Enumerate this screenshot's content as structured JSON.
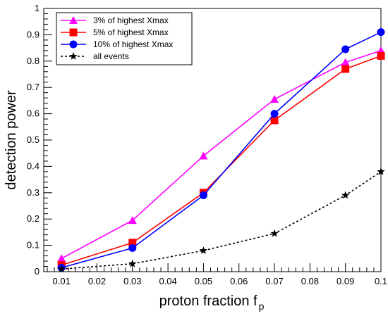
{
  "chart_data": {
    "type": "line",
    "xlabel": "proton fraction f",
    "xlabel_subscript": "p",
    "ylabel": "detection power",
    "xlim": [
      0.005,
      0.1
    ],
    "ylim": [
      0,
      1
    ],
    "x": [
      0.01,
      0.03,
      0.05,
      0.07,
      0.09,
      0.1
    ],
    "x_ticks": [
      {
        "value": 0.01,
        "label": "0.01"
      },
      {
        "value": 0.02,
        "label": "0.02"
      },
      {
        "value": 0.03,
        "label": "0.03"
      },
      {
        "value": 0.04,
        "label": "0.04"
      },
      {
        "value": 0.05,
        "label": "0.05"
      },
      {
        "value": 0.06,
        "label": "0.06"
      },
      {
        "value": 0.07,
        "label": "0.07"
      },
      {
        "value": 0.08,
        "label": "0.08"
      },
      {
        "value": 0.09,
        "label": "0.09"
      },
      {
        "value": 0.1,
        "label": "0.1"
      }
    ],
    "y_ticks": [
      {
        "value": 0,
        "label": "0"
      },
      {
        "value": 0.1,
        "label": "0.1"
      },
      {
        "value": 0.2,
        "label": "0.2"
      },
      {
        "value": 0.3,
        "label": "0.3"
      },
      {
        "value": 0.4,
        "label": "0.4"
      },
      {
        "value": 0.5,
        "label": "0.5"
      },
      {
        "value": 0.6,
        "label": "0.6"
      },
      {
        "value": 0.7,
        "label": "0.7"
      },
      {
        "value": 0.8,
        "label": "0.8"
      },
      {
        "value": 0.9,
        "label": "0.9"
      },
      {
        "value": 1,
        "label": "1"
      }
    ],
    "legend_position": "top-left",
    "grid": false,
    "series": [
      {
        "name": "3% of highest Xmax",
        "color": "#ff00ff",
        "marker": "triangle",
        "line": "solid",
        "values": [
          0.05,
          0.195,
          0.44,
          0.655,
          0.795,
          0.84
        ]
      },
      {
        "name": "5% of highest Xmax",
        "color": "#ff0000",
        "marker": "square",
        "line": "solid",
        "values": [
          0.025,
          0.11,
          0.3,
          0.575,
          0.77,
          0.82
        ]
      },
      {
        "name": "10% of highest Xmax",
        "color": "#0000ff",
        "marker": "circle",
        "line": "solid",
        "values": [
          0.015,
          0.09,
          0.29,
          0.6,
          0.845,
          0.91
        ]
      },
      {
        "name": "all events",
        "color": "#000000",
        "marker": "star",
        "line": "dashed",
        "values": [
          0.01,
          0.03,
          0.08,
          0.145,
          0.29,
          0.38
        ]
      }
    ]
  }
}
